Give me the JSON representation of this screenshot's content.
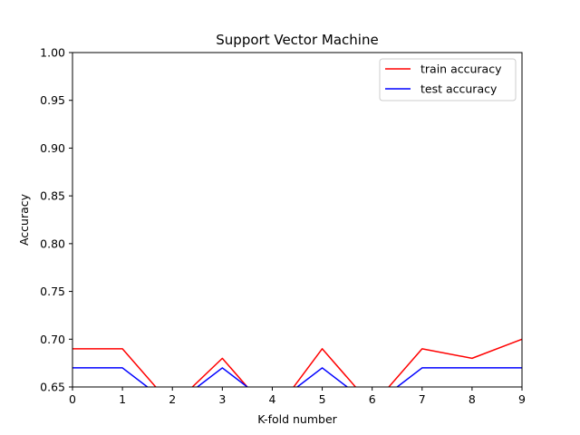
{
  "chart_data": {
    "type": "line",
    "title": "Support Vector Machine",
    "xlabel": "K-fold number",
    "ylabel": "Accuracy",
    "x": [
      0,
      1,
      2,
      3,
      4,
      5,
      6,
      7,
      8,
      9
    ],
    "xlim": [
      0,
      9
    ],
    "ylim": [
      0.65,
      1.0
    ],
    "x_ticks": [
      "0",
      "1",
      "2",
      "3",
      "4",
      "5",
      "6",
      "7",
      "8",
      "9"
    ],
    "y_ticks": [
      "0.65",
      "0.70",
      "0.75",
      "0.80",
      "0.85",
      "0.90",
      "0.95",
      "1.00"
    ],
    "grid": false,
    "legend_position": "top-right",
    "series": [
      {
        "name": "train accuracy",
        "color": "#ff0000",
        "values": [
          0.69,
          0.69,
          0.63,
          0.68,
          0.62,
          0.69,
          0.63,
          0.69,
          0.68,
          0.7
        ]
      },
      {
        "name": "test accuracy",
        "color": "#0000ff",
        "values": [
          0.67,
          0.67,
          0.63,
          0.67,
          0.63,
          0.67,
          0.63,
          0.67,
          0.67,
          0.67
        ]
      }
    ]
  }
}
